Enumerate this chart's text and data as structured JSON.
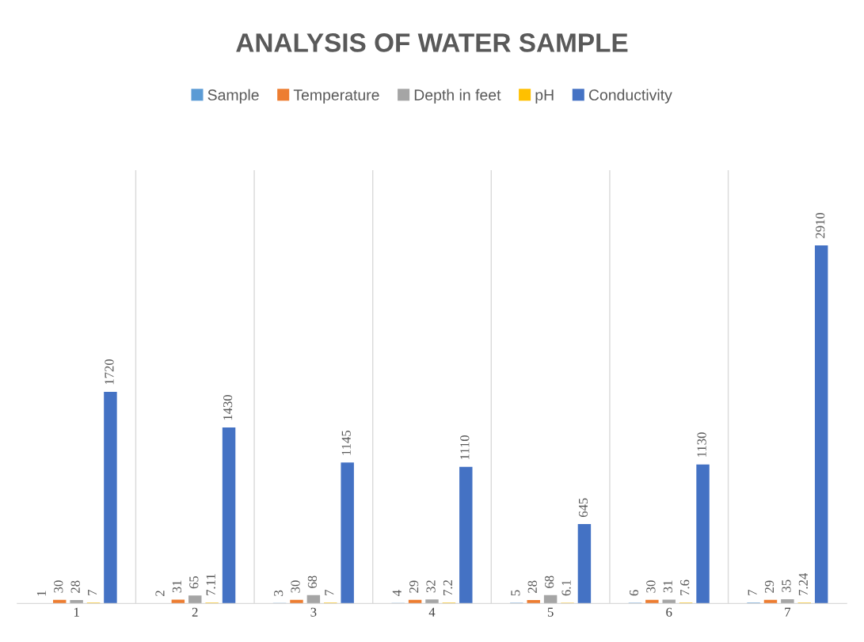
{
  "chart_data": {
    "type": "bar",
    "title": "ANALYSIS OF WATER SAMPLE",
    "categories": [
      "1",
      "2",
      "3",
      "4",
      "5",
      "6",
      "7"
    ],
    "series": [
      {
        "name": "Sample",
        "color": "#5b9bd5",
        "values": [
          1,
          2,
          3,
          4,
          5,
          6,
          7
        ]
      },
      {
        "name": "Temperature",
        "color": "#ed7d31",
        "values": [
          30,
          31,
          30,
          29,
          28,
          30,
          29
        ]
      },
      {
        "name": "Depth in feet",
        "color": "#a5a5a5",
        "values": [
          28,
          65,
          68,
          32,
          68,
          31,
          35
        ]
      },
      {
        "name": "pH",
        "color": "#ffc000",
        "values": [
          7,
          7.11,
          7,
          7.2,
          6.1,
          7.6,
          7.24
        ]
      },
      {
        "name": "Conductivity",
        "color": "#4472c4",
        "values": [
          1720,
          1430,
          1145,
          1110,
          645,
          1130,
          2910
        ]
      }
    ],
    "data_labels": true,
    "legend": "top",
    "grid": "x"
  }
}
